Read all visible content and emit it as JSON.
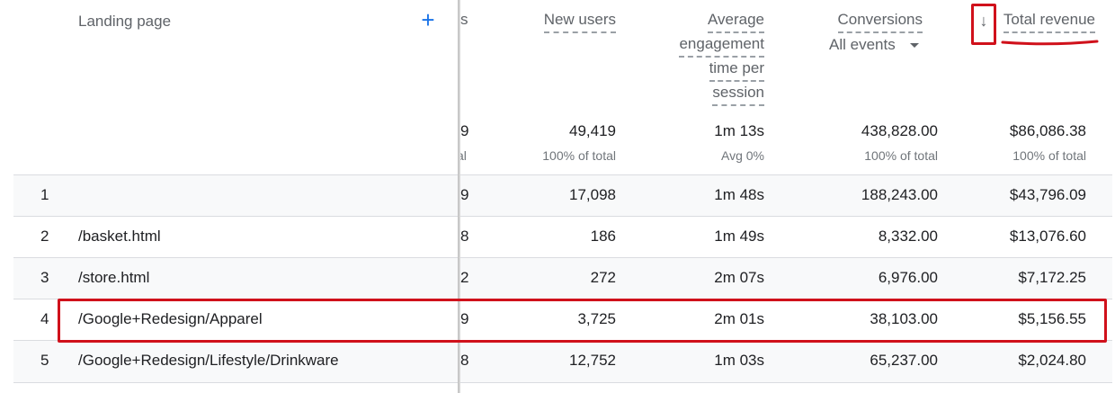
{
  "header": {
    "dimension_label": "Landing page",
    "add_icon": "plus-icon",
    "columns": {
      "partial": "s",
      "new_users": "New users",
      "avg_engagement": [
        "Average",
        "engagement",
        "time per",
        "session"
      ],
      "conversions": "Conversions",
      "conversions_filter": "All events",
      "total_revenue": "Total revenue",
      "sort_icon": "arrow-down-icon"
    }
  },
  "totals": {
    "partial": "9",
    "partial_sub": "al",
    "new_users": "49,419",
    "new_users_sub": "100% of total",
    "avg_engagement": "1m 13s",
    "avg_engagement_sub": "Avg 0%",
    "conversions": "438,828.00",
    "conversions_sub": "100% of total",
    "total_revenue": "$86,086.38",
    "total_revenue_sub": "100% of total"
  },
  "rows": [
    {
      "index": "1",
      "page": "",
      "partial": "9",
      "new_users": "17,098",
      "avg_engagement": "1m 48s",
      "conversions": "188,243.00",
      "total_revenue": "$43,796.09"
    },
    {
      "index": "2",
      "page": "/basket.html",
      "partial": "8",
      "new_users": "186",
      "avg_engagement": "1m 49s",
      "conversions": "8,332.00",
      "total_revenue": "$13,076.60"
    },
    {
      "index": "3",
      "page": "/store.html",
      "partial": "2",
      "new_users": "272",
      "avg_engagement": "2m 07s",
      "conversions": "6,976.00",
      "total_revenue": "$7,172.25"
    },
    {
      "index": "4",
      "page": "/Google+Redesign/Apparel",
      "partial": "9",
      "new_users": "3,725",
      "avg_engagement": "2m 01s",
      "conversions": "38,103.00",
      "total_revenue": "$5,156.55"
    },
    {
      "index": "5",
      "page": "/Google+Redesign/Lifestyle/Drinkware",
      "partial": "8",
      "new_users": "12,752",
      "avg_engagement": "1m 03s",
      "conversions": "65,237.00",
      "total_revenue": "$2,024.80"
    }
  ],
  "colors": {
    "accent_blue": "#1a73e8",
    "annotation_red": "#d0111b"
  }
}
